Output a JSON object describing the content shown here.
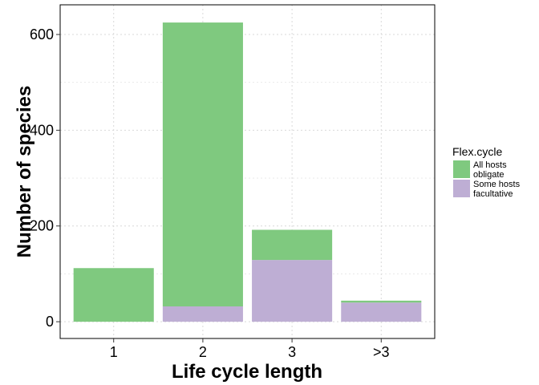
{
  "chart_data": {
    "type": "bar",
    "stacked": true,
    "categories": [
      "1",
      "2",
      "3",
      ">3"
    ],
    "series": [
      {
        "name": "All hosts obligate",
        "label_lines": [
          "All hosts",
          "obligate"
        ],
        "color": "#7fc97f",
        "values": [
          112,
          593,
          63,
          4
        ]
      },
      {
        "name": "Some hosts facultative",
        "label_lines": [
          "Some hosts",
          "facultative"
        ],
        "color": "#beaed4",
        "values": [
          0,
          32,
          129,
          40
        ]
      }
    ],
    "xlabel": "Life cycle length",
    "ylabel": "Number of species",
    "yticks": [
      0,
      200,
      400,
      600
    ],
    "ylim": [
      -35,
      662
    ],
    "grid": true,
    "legend": {
      "title": "Flex.cycle",
      "position": "right"
    }
  }
}
